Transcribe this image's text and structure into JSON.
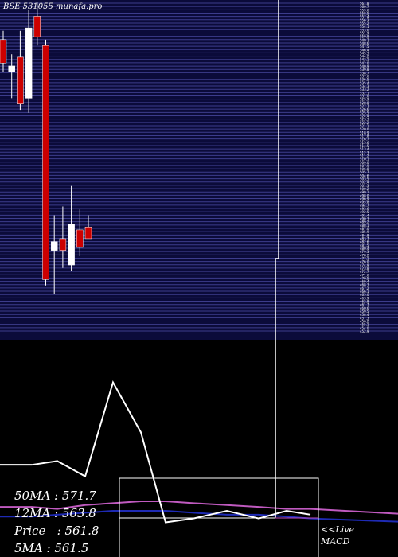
{
  "header": {
    "symbol_label": "BSE 531055",
    "site": "munafa.pro"
  },
  "stats": {
    "ma50": "50MA : 571.7",
    "ma12": "12MA : 563.8",
    "price": "Price   : 561.8",
    "ma5": "5MA : 561.5"
  },
  "live": {
    "line1": "<<Live",
    "line2": "MACD"
  },
  "colors": {
    "background": "#000000",
    "price_panel": "#0b0b3a",
    "gridline": "#3c3c8c",
    "bear": "#cc0000",
    "bull": "#ffffff",
    "wick": "#ffffff",
    "ma_pink": "#c05ac0",
    "ma_blue": "#1e2ab4",
    "macd_line": "#ffffff",
    "signal_line": "#c050c0"
  },
  "chart_data": {
    "type": "candlestick",
    "price_levels": [
      561.8,
      560.7,
      559.6,
      558.5,
      557.4,
      556.3,
      555.2,
      554.1,
      553.0,
      551.9,
      550.8,
      549.7,
      548.6,
      547.5,
      546.4,
      545.3,
      544.2,
      543.1,
      542.0,
      540.9,
      539.8,
      538.7,
      537.6,
      536.5,
      535.4,
      534.3,
      533.2,
      532.1,
      531.0,
      529.9,
      528.8,
      527.7,
      526.6,
      525.5,
      524.4,
      523.3,
      522.2,
      521.1,
      520.0,
      518.9,
      517.8,
      516.7,
      515.6,
      514.5,
      513.4,
      512.3,
      511.2,
      510.1,
      509.0,
      507.9,
      506.8,
      505.7,
      504.6,
      503.5,
      502.4,
      501.3,
      500.2,
      499.1,
      498.0,
      496.9,
      495.8,
      494.7,
      493.6,
      492.5,
      491.4,
      490.3,
      489.2,
      488.1,
      487.0,
      485.9,
      484.8,
      483.7,
      482.6,
      481.5,
      480.4,
      479.3,
      478.2,
      477.1,
      476.0,
      474.9,
      473.8,
      472.7,
      471.6,
      470.5,
      469.4,
      468.3,
      467.2,
      466.1,
      465.0,
      463.9,
      462.8,
      461.7,
      460.6,
      459.5,
      458.4,
      457.3,
      456.2,
      455.1,
      454.0,
      452.9
    ],
    "price_range": [
      450,
      565
    ],
    "candles": [
      {
        "open": 552,
        "high": 555,
        "low": 541,
        "close": 544
      },
      {
        "open": 541,
        "high": 547,
        "low": 532,
        "close": 543
      },
      {
        "open": 546,
        "high": 555,
        "low": 528,
        "close": 530
      },
      {
        "open": 532,
        "high": 562,
        "low": 527,
        "close": 556
      },
      {
        "open": 560,
        "high": 565,
        "low": 550,
        "close": 553
      },
      {
        "open": 550,
        "high": 552,
        "low": 468,
        "close": 470
      },
      {
        "open": 480,
        "high": 492,
        "low": 465,
        "close": 483
      },
      {
        "open": 484,
        "high": 495,
        "low": 474,
        "close": 480
      },
      {
        "open": 475,
        "high": 502,
        "low": 473,
        "close": 489
      },
      {
        "open": 487,
        "high": 494,
        "low": 478,
        "close": 481
      },
      {
        "open": 488,
        "high": 492,
        "low": 484,
        "close": 484
      }
    ],
    "macd": [
      7.6,
      7.6,
      7.8,
      7.0,
      11.9,
      9.3,
      4.6,
      4.8,
      5.2,
      4.8,
      5.2,
      5.0
    ],
    "macd_range": [
      3,
      14
    ],
    "signal": [
      5.4,
      5.4,
      5.3,
      5.5,
      5.6,
      5.7,
      5.7,
      5.6,
      5.5,
      5.4,
      5.3,
      5.3
    ],
    "ma_slow": [
      4.9,
      4.9,
      5.0,
      5.1,
      5.2,
      5.2,
      5.2,
      5.1,
      5.0,
      5.0,
      4.9,
      4.8
    ],
    "spike_value": 58
  }
}
